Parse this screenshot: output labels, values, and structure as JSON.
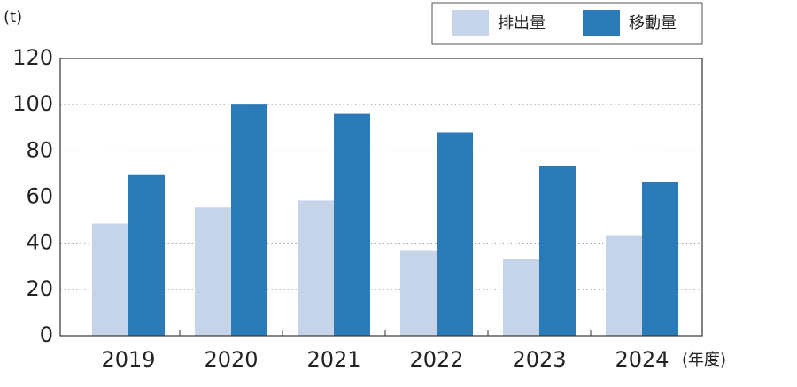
{
  "chart_data": {
    "type": "bar",
    "y_unit": "(t)",
    "x_unit": "(年度)",
    "categories": [
      "2019",
      "2020",
      "2021",
      "2022",
      "2023",
      "2024"
    ],
    "series": [
      {
        "name": "排出量",
        "color": "#c6d4ea",
        "values": [
          48.5,
          55.5,
          58.5,
          37,
          33,
          43.5
        ]
      },
      {
        "name": "移動量",
        "color": "#2a7bb8",
        "values": [
          69.5,
          100,
          96,
          88,
          73.5,
          66.5
        ]
      }
    ],
    "ylim": [
      0,
      120
    ],
    "yticks": [
      0,
      20,
      40,
      60,
      80,
      100,
      120
    ],
    "grid": true
  }
}
